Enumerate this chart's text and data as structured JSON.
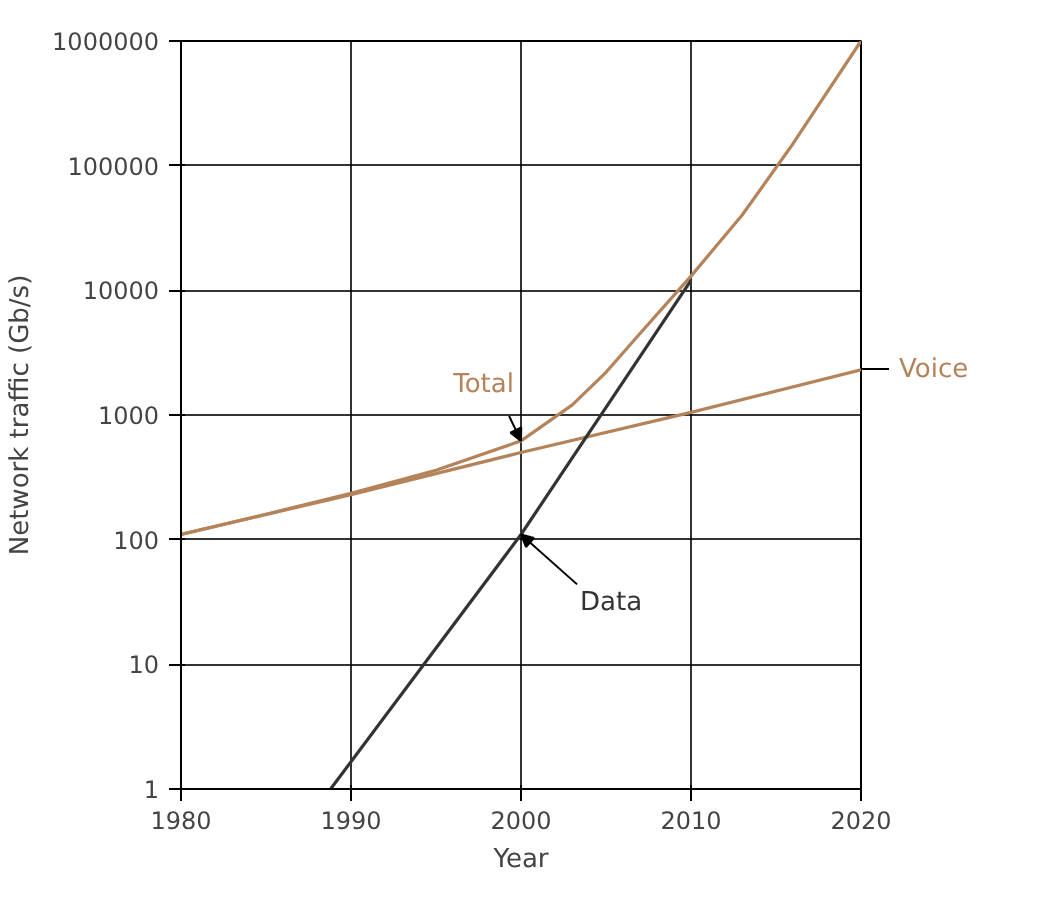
{
  "chart_data": {
    "type": "line",
    "xlabel": "Year",
    "ylabel": "Network traffic (Gb/s)",
    "log": "y",
    "grid": true,
    "legend": false,
    "xlim": [
      1980,
      2020
    ],
    "xticks": [
      1980,
      1990,
      2000,
      2010,
      2020
    ],
    "ylim": [
      1,
      1000000
    ],
    "yticks": [
      1,
      10,
      100,
      1000,
      10000,
      100000,
      1000000
    ],
    "series": [
      {
        "name": "Total",
        "color": "#b5835a",
        "x": [
          1980,
          1985,
          1990,
          1995,
          2000,
          2003,
          2005,
          2007,
          2010,
          2013,
          2016,
          2020
        ],
        "values": [
          110,
          160,
          235,
          360,
          620,
          1200,
          2200,
          4500,
          13000,
          40000,
          150000,
          1000000
        ]
      },
      {
        "name": "Voice",
        "color": "#b5835a",
        "x": [
          1980,
          1990,
          2000,
          2010,
          2020
        ],
        "values": [
          110,
          230,
          500,
          1050,
          2300
        ]
      },
      {
        "name": "Data",
        "color": "#333333",
        "x": [
          1988.8,
          2000,
          2010
        ],
        "values": [
          1,
          110,
          12000
        ]
      }
    ]
  }
}
